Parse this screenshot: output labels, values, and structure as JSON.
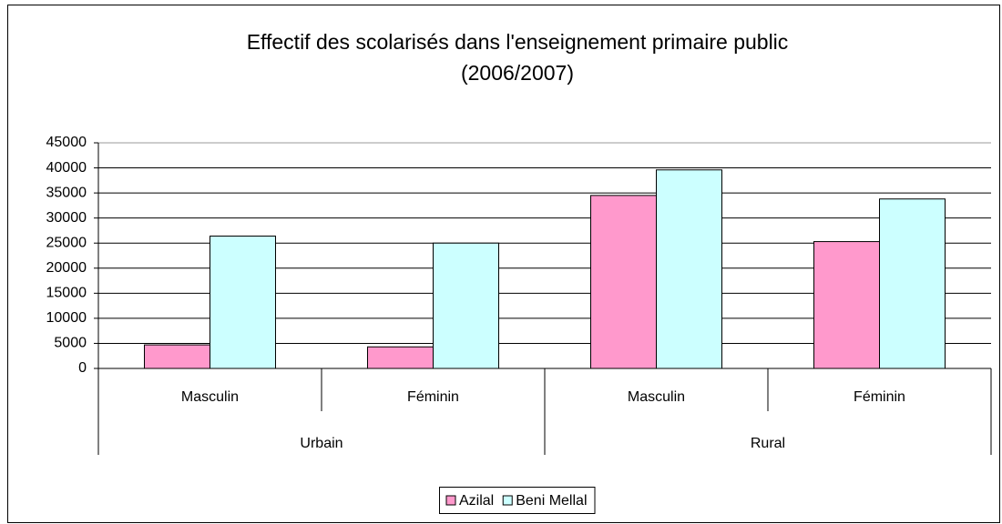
{
  "chart_data": {
    "type": "bar",
    "title": "Effectif des scolarisés dans l'enseignement primaire public",
    "subtitle": "(2006/2007)",
    "groups": [
      {
        "name": "Urbain",
        "categories": [
          "Masculin",
          "Féminin"
        ]
      },
      {
        "name": "Rural",
        "categories": [
          "Masculin",
          "Féminin"
        ]
      }
    ],
    "series": [
      {
        "name": "Azilal",
        "color": "#ff99cc",
        "values": [
          4700,
          4300,
          34500,
          25300
        ]
      },
      {
        "name": "Beni Mellal",
        "color": "#ccffff",
        "values": [
          26400,
          25000,
          39600,
          33800
        ]
      }
    ],
    "ylim": [
      0,
      45000
    ],
    "yticks": [
      0,
      5000,
      10000,
      15000,
      20000,
      25000,
      30000,
      35000,
      40000,
      45000
    ],
    "grid": true,
    "legend": "bottom"
  }
}
